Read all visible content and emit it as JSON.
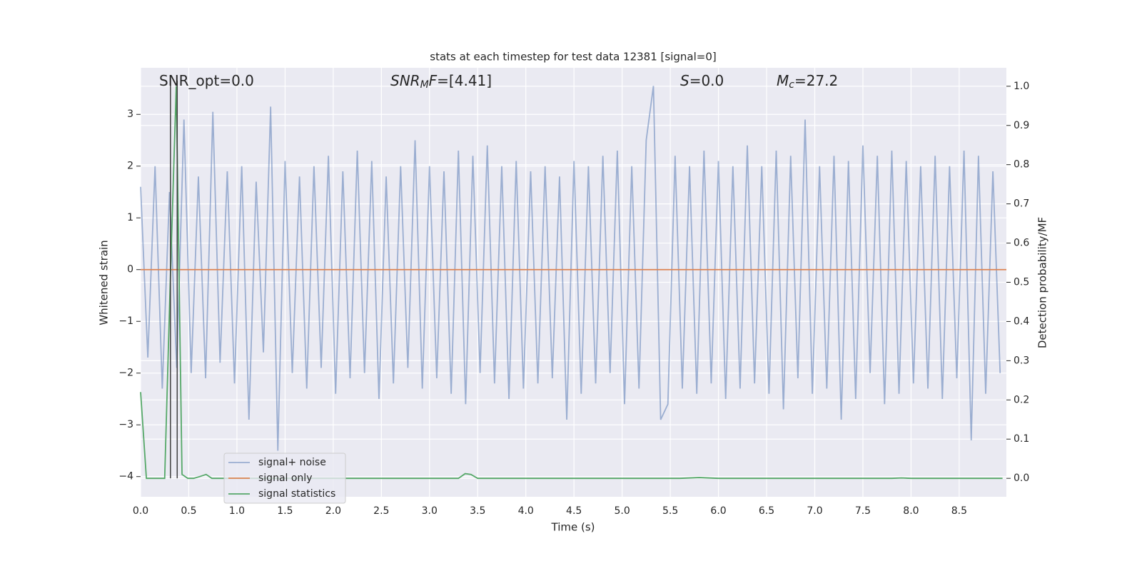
{
  "chart_data": {
    "type": "line",
    "title": "stats at each timestep for test data 12381 [signal=0]",
    "xlabel": "Time (s)",
    "ylabel": "Whitened strain",
    "y2label": "Detection probability/MF",
    "grid": true,
    "background": "#eaeaf2",
    "legend": "lower left",
    "xlim": [
      0,
      8.99
    ],
    "ylim": [
      -4.39,
      3.9
    ],
    "y2lim": [
      -0.047,
      1.047
    ],
    "xticks": [
      {
        "value": 0,
        "label": "0.0"
      },
      0.5,
      {
        "value": 1,
        "label": "1.0"
      },
      1.5,
      {
        "value": 2,
        "label": "2.0"
      },
      2.5,
      {
        "value": 3,
        "label": "3.0"
      },
      3.5,
      {
        "value": 4,
        "label": "4.0"
      },
      4.5,
      {
        "value": 5,
        "label": "5.0"
      },
      5.5,
      {
        "value": 6,
        "label": "6.0"
      },
      6.5,
      {
        "value": 7,
        "label": "7.0"
      },
      7.5,
      {
        "value": 8,
        "label": "8.0"
      },
      8.5
    ],
    "yticks": [
      {
        "value": -4,
        "label": "−4"
      },
      {
        "value": -3,
        "label": "−3"
      },
      {
        "value": -2,
        "label": "−2"
      },
      {
        "value": -1,
        "label": "−1"
      },
      0,
      1,
      2,
      3
    ],
    "y2ticks": [
      {
        "value": 0,
        "label": "0.0"
      },
      0.1,
      0.2,
      0.3,
      0.4,
      0.5,
      0.6,
      0.7,
      0.8,
      0.9,
      {
        "value": 1,
        "label": "1.0"
      }
    ],
    "vlines": [
      0.31,
      0.38
    ],
    "vline_color": "#404040",
    "annotations": [
      {
        "segments": [
          {
            "text": "SNR_opt=0.0"
          }
        ]
      },
      {
        "segments": [
          {
            "text": "SNR",
            "math": true
          },
          {
            "text": "M",
            "math": true,
            "sub": true
          },
          {
            "text": "F",
            "math": true
          },
          {
            "text": "=[4.41]"
          }
        ]
      },
      {
        "segments": [
          {
            "text": "S",
            "math": true
          },
          {
            "text": "=0.0"
          }
        ]
      },
      {
        "segments": [
          {
            "text": "M",
            "math": true
          },
          {
            "text": "c",
            "math": true,
            "sub": true
          },
          {
            "text": "=27.2"
          }
        ]
      }
    ],
    "series": [
      {
        "name": "signal+ noise",
        "color": "#4c72b0",
        "alpha": 0.5,
        "x": [
          0,
          0.075,
          0.15,
          0.225,
          0.3,
          0.375,
          0.45,
          0.525,
          0.6,
          0.675,
          0.75,
          0.825,
          0.9,
          0.975,
          1.05,
          1.125,
          1.2,
          1.275,
          1.35,
          1.425,
          1.5,
          1.575,
          1.65,
          1.725,
          1.8,
          1.875,
          1.95,
          2.025,
          2.1,
          2.175,
          2.25,
          2.325,
          2.4,
          2.475,
          2.55,
          2.625,
          2.7,
          2.775,
          2.85,
          2.925,
          3,
          3.075,
          3.15,
          3.225,
          3.3,
          3.375,
          3.45,
          3.525,
          3.6,
          3.675,
          3.75,
          3.825,
          3.9,
          3.975,
          4.05,
          4.125,
          4.2,
          4.275,
          4.35,
          4.425,
          4.5,
          4.575,
          4.65,
          4.725,
          4.8,
          4.875,
          4.95,
          5.025,
          5.1,
          5.175,
          5.25,
          5.325,
          5.4,
          5.475,
          5.55,
          5.625,
          5.7,
          5.775,
          5.85,
          5.925,
          6,
          6.075,
          6.15,
          6.225,
          6.3,
          6.375,
          6.45,
          6.525,
          6.6,
          6.675,
          6.75,
          6.825,
          6.9,
          6.975,
          7.05,
          7.125,
          7.2,
          7.275,
          7.35,
          7.425,
          7.5,
          7.575,
          7.65,
          7.725,
          7.8,
          7.875,
          7.95,
          8.025,
          8.1,
          8.175,
          8.25,
          8.325,
          8.4,
          8.475,
          8.55,
          8.625,
          8.7,
          8.775,
          8.85,
          8.925
        ],
        "values": [
          1.6,
          -1.7,
          2.0,
          -2.3,
          1.5,
          -1.9,
          2.9,
          -2.0,
          1.8,
          -2.1,
          3.05,
          -1.8,
          1.9,
          -2.2,
          2.0,
          -2.9,
          1.7,
          -1.6,
          3.15,
          -3.5,
          2.1,
          -2.0,
          1.8,
          -2.3,
          2.0,
          -1.9,
          2.2,
          -2.4,
          1.9,
          -2.1,
          2.3,
          -2.0,
          2.1,
          -2.5,
          1.8,
          -2.2,
          2.0,
          -1.9,
          2.5,
          -2.3,
          2.0,
          -2.1,
          1.9,
          -2.4,
          2.3,
          -2.6,
          2.2,
          -2.0,
          2.4,
          -2.2,
          2.0,
          -2.5,
          2.1,
          -2.3,
          1.9,
          -2.2,
          2.0,
          -2.1,
          1.8,
          -2.9,
          2.1,
          -2.4,
          2.0,
          -2.2,
          2.2,
          -2.0,
          2.3,
          -2.6,
          2.0,
          -2.3,
          2.5,
          3.55,
          -2.9,
          -2.6,
          2.2,
          -2.3,
          2.0,
          -2.4,
          2.3,
          -2.2,
          2.1,
          -2.5,
          2.0,
          -2.3,
          2.4,
          -2.2,
          2.0,
          -2.4,
          2.3,
          -2.7,
          2.2,
          -2.1,
          2.9,
          -2.4,
          2.0,
          -2.3,
          2.2,
          -2.9,
          2.1,
          -2.5,
          2.4,
          -2.0,
          2.2,
          -2.6,
          2.3,
          -2.4,
          2.1,
          -2.2,
          2.0,
          -2.3,
          2.2,
          -2.5,
          2.0,
          -2.1,
          2.3,
          -3.3,
          2.2,
          -2.4,
          1.9,
          -2.0
        ]
      },
      {
        "name": "signal only",
        "color": "#dd8452",
        "x": [
          0,
          8.99
        ],
        "values": [
          0,
          0
        ]
      },
      {
        "name": "signal statistics",
        "color": "#55a868",
        "axis": "y2",
        "x": [
          0,
          0.06,
          0.12,
          0.18,
          0.25,
          0.31,
          0.37,
          0.43,
          0.49,
          0.55,
          0.62,
          0.68,
          0.74,
          1.0,
          2.0,
          3.0,
          3.3,
          3.37,
          3.43,
          3.5,
          4.0,
          5.0,
          5.6,
          5.8,
          6.0,
          7.0,
          7.8,
          7.9,
          8.0,
          8.95
        ],
        "values": [
          0.22,
          0.0,
          0.0,
          0.0,
          0.0,
          0.52,
          1.0,
          0.01,
          0.0,
          0.0,
          0.005,
          0.01,
          0.0,
          0.0,
          0.0,
          0.0,
          0.0,
          0.012,
          0.01,
          0.0,
          0.0,
          0.0,
          0.0,
          0.002,
          0.0,
          0.0,
          0.0,
          0.001,
          0.0,
          0.0
        ]
      }
    ]
  }
}
